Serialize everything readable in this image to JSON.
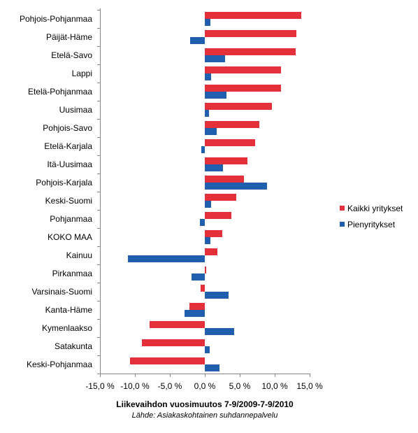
{
  "chart_data": {
    "type": "bar",
    "orientation": "horizontal",
    "title": "Liikevaihdon vuosimuutos 7-9/2009-7-9/2010",
    "subtitle": "Lähde: Asiakaskohtainen suhdannepalvelu",
    "categories": [
      "Pohjois-Pohjanmaa",
      "Päijät-Häme",
      "Etelä-Savo",
      "Lappi",
      "Etelä-Pohjanmaa",
      "Uusimaa",
      "Pohjois-Savo",
      "Etelä-Karjala",
      "Itä-Uusimaa",
      "Pohjois-Karjala",
      "Keski-Suomi",
      "Pohjanmaa",
      "KOKO MAA",
      "Kainuu",
      "Pirkanmaa",
      "Varsinais-Suomi",
      "Kanta-Häme",
      "Kymenlaakso",
      "Satakunta",
      "Keski-Pohjanmaa"
    ],
    "series": [
      {
        "name": "Kaikki yritykset",
        "color": "#e3303a",
        "values": [
          13.8,
          13.1,
          13.0,
          10.9,
          10.9,
          9.6,
          7.8,
          7.2,
          6.1,
          5.6,
          4.5,
          3.8,
          2.5,
          1.8,
          0.2,
          -0.6,
          -2.2,
          -7.9,
          -9.0,
          -10.7
        ]
      },
      {
        "name": "Pienyritykset",
        "color": "#1f5fae",
        "values": [
          0.8,
          -2.1,
          2.9,
          0.9,
          3.1,
          0.6,
          1.7,
          -0.5,
          2.6,
          8.9,
          0.9,
          -0.7,
          0.8,
          -11.0,
          -1.9,
          3.4,
          -2.9,
          4.2,
          0.7,
          2.1
        ]
      }
    ],
    "xlim": [
      -15,
      15
    ],
    "xticks": [
      -15,
      -10,
      -5,
      0,
      5,
      10,
      15
    ],
    "xtick_labels": [
      "-15,0 %",
      "-10,0 %",
      "-5,0 %",
      "0,0 %",
      "5,0 %",
      "10,0 %",
      "15,0 %"
    ],
    "grid": false,
    "legend_position": "right"
  }
}
